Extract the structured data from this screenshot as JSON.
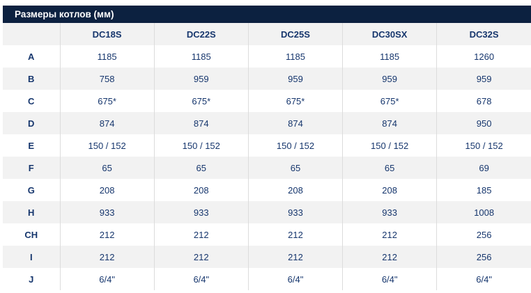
{
  "title_bar": {
    "title": "Размеры котлов (мм)"
  },
  "colors": {
    "title_bar_bg": "#0c2140",
    "title_text": "#ffffff",
    "cell_text": "#16366d",
    "alt_row_bg": "#f2f2f2",
    "divider": "#dcdcdc"
  },
  "table": {
    "corner_label": "",
    "columns": [
      "DC18S",
      "DC22S",
      "DC25S",
      "DC30SX",
      "DC32S"
    ],
    "rows": [
      {
        "label": "A",
        "values": [
          "1185",
          "1185",
          "1185",
          "1185",
          "1260"
        ]
      },
      {
        "label": "B",
        "values": [
          "758",
          "959",
          "959",
          "959",
          "959"
        ]
      },
      {
        "label": "C",
        "values": [
          "675*",
          "675*",
          "675*",
          "675*",
          "678"
        ]
      },
      {
        "label": "D",
        "values": [
          "874",
          "874",
          "874",
          "874",
          "950"
        ]
      },
      {
        "label": "E",
        "values": [
          "150 / 152",
          "150 / 152",
          "150 / 152",
          "150 / 152",
          "150 / 152"
        ]
      },
      {
        "label": "F",
        "values": [
          "65",
          "65",
          "65",
          "65",
          "69"
        ]
      },
      {
        "label": "G",
        "values": [
          "208",
          "208",
          "208",
          "208",
          "185"
        ]
      },
      {
        "label": "H",
        "values": [
          "933",
          "933",
          "933",
          "933",
          "1008"
        ]
      },
      {
        "label": "CH",
        "values": [
          "212",
          "212",
          "212",
          "212",
          "256"
        ]
      },
      {
        "label": "I",
        "values": [
          "212",
          "212",
          "212",
          "212",
          "256"
        ]
      },
      {
        "label": "J",
        "values": [
          "6/4\"",
          "6/4\"",
          "6/4\"",
          "6/4\"",
          "6/4\""
        ]
      }
    ]
  }
}
